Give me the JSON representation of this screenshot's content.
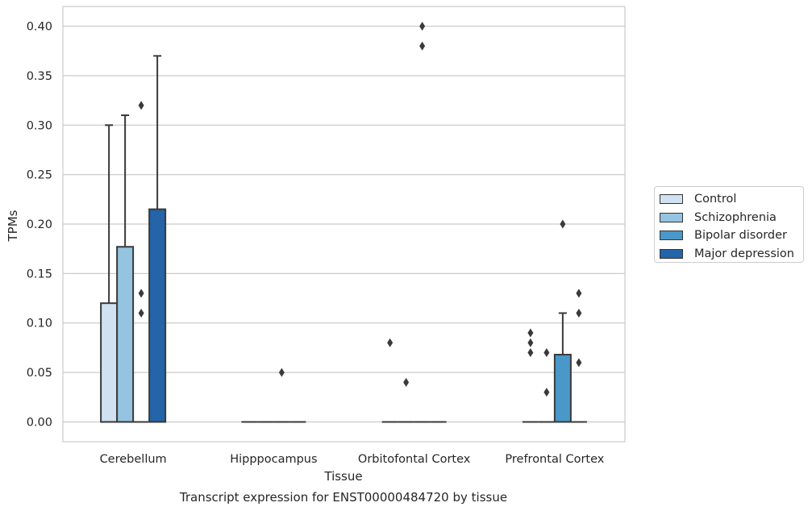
{
  "chart_data": {
    "type": "boxplot",
    "title": "Transcript expression for ENST00000484720 by tissue",
    "xlabel": "Tissue",
    "ylabel": "TPMs",
    "ylim": [
      -0.02,
      0.42
    ],
    "yticks": [
      "0.00",
      "0.05",
      "0.10",
      "0.15",
      "0.20",
      "0.25",
      "0.30",
      "0.35",
      "0.40"
    ],
    "ytick_values": [
      0,
      0.05,
      0.1,
      0.15,
      0.2,
      0.25,
      0.3,
      0.35,
      0.4
    ],
    "grid": "horizontal",
    "legend_position": "right",
    "categories": [
      "Cerebellum",
      "Hipppocampus",
      "Orbitofontal Cortex",
      "Prefrontal Cortex"
    ],
    "series": [
      {
        "name": "Control",
        "color": "#d0e1f2",
        "boxes": [
          {
            "q1": 0,
            "median": 0,
            "q3": 0.12,
            "whisker_low": 0,
            "whisker_high": 0.3,
            "outliers": []
          },
          {
            "q1": 0,
            "median": 0,
            "q3": 0,
            "whisker_low": 0,
            "whisker_high": 0,
            "outliers": []
          },
          {
            "q1": 0,
            "median": 0,
            "q3": 0,
            "whisker_low": 0,
            "whisker_high": 0,
            "outliers": [
              0.08
            ]
          },
          {
            "q1": 0,
            "median": 0,
            "q3": 0,
            "whisker_low": 0,
            "whisker_high": 0,
            "outliers": [
              0.09,
              0.08,
              0.07
            ]
          }
        ]
      },
      {
        "name": "Schizophrenia",
        "color": "#94c4df",
        "boxes": [
          {
            "q1": 0,
            "median": 0,
            "q3": 0.177,
            "whisker_low": 0,
            "whisker_high": 0.31,
            "outliers": []
          },
          {
            "q1": 0,
            "median": 0,
            "q3": 0,
            "whisker_low": 0,
            "whisker_high": 0,
            "outliers": []
          },
          {
            "q1": 0,
            "median": 0,
            "q3": 0,
            "whisker_low": 0,
            "whisker_high": 0,
            "outliers": [
              0.04
            ]
          },
          {
            "q1": 0,
            "median": 0,
            "q3": 0,
            "whisker_low": 0,
            "whisker_high": 0,
            "outliers": [
              0.07,
              0.03
            ]
          }
        ]
      },
      {
        "name": "Bipolar disorder",
        "color": "#4a98c9",
        "boxes": [
          {
            "q1": 0,
            "median": 0,
            "q3": 0,
            "whisker_low": 0,
            "whisker_high": 0,
            "outliers": [
              0.32,
              0.13,
              0.11
            ]
          },
          {
            "q1": 0,
            "median": 0,
            "q3": 0,
            "whisker_low": 0,
            "whisker_high": 0,
            "outliers": [
              0.05
            ]
          },
          {
            "q1": 0,
            "median": 0,
            "q3": 0,
            "whisker_low": 0,
            "whisker_high": 0,
            "outliers": [
              0.4,
              0.38
            ]
          },
          {
            "q1": 0,
            "median": 0,
            "q3": 0.068,
            "whisker_low": 0,
            "whisker_high": 0.11,
            "outliers": [
              0.2
            ]
          }
        ]
      },
      {
        "name": "Major depression",
        "color": "#2464a8",
        "boxes": [
          {
            "q1": 0,
            "median": 0,
            "q3": 0.215,
            "whisker_low": 0,
            "whisker_high": 0.37,
            "outliers": []
          },
          {
            "q1": 0,
            "median": 0,
            "q3": 0,
            "whisker_low": 0,
            "whisker_high": 0,
            "outliers": []
          },
          {
            "q1": 0,
            "median": 0,
            "q3": 0,
            "whisker_low": 0,
            "whisker_high": 0,
            "outliers": []
          },
          {
            "q1": 0,
            "median": 0,
            "q3": 0,
            "whisker_low": 0,
            "whisker_high": 0,
            "outliers": [
              0.13,
              0.11,
              0.06
            ]
          }
        ]
      }
    ]
  }
}
